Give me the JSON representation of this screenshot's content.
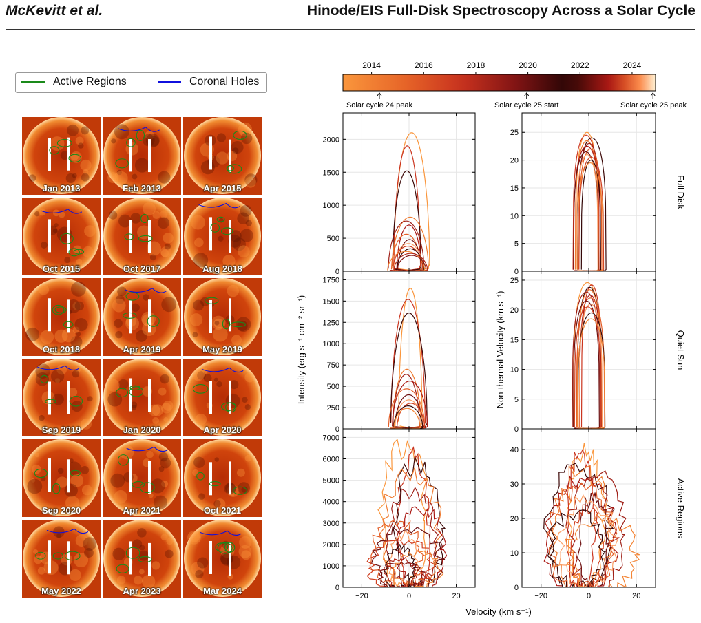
{
  "header": {
    "left": "McKevitt et al.",
    "right": "Hinode/EIS Full-Disk Spectroscopy Across a Solar Cycle"
  },
  "legend": {
    "items": [
      {
        "label": "Active Regions",
        "color": "#1a8a1a"
      },
      {
        "label": "Coronal Holes",
        "color": "#1010dd"
      }
    ]
  },
  "tiles": [
    {
      "label": "Jan 2013"
    },
    {
      "label": "Feb 2013"
    },
    {
      "label": "Apr 2015"
    },
    {
      "label": "Oct 2015"
    },
    {
      "label": "Oct 2017"
    },
    {
      "label": "Aug 2018"
    },
    {
      "label": "Oct 2018"
    },
    {
      "label": "Apr 2019"
    },
    {
      "label": "May 2019"
    },
    {
      "label": "Sep 2019"
    },
    {
      "label": "Jan 2020"
    },
    {
      "label": "Apr 2020"
    },
    {
      "label": "Sep 2020"
    },
    {
      "label": "Apr 2021"
    },
    {
      "label": "Oct 2021"
    },
    {
      "label": "May 2022"
    },
    {
      "label": "Apr 2023"
    },
    {
      "label": "Mar 2024"
    }
  ],
  "colorbar": {
    "ticks": [
      "2014",
      "2016",
      "2018",
      "2020",
      "2022",
      "2024"
    ],
    "tick_years": [
      2014,
      2016,
      2018,
      2020,
      2022,
      2024
    ],
    "range": [
      2012.9,
      2024.9
    ],
    "markers": [
      {
        "label": "Solar cycle 24 peak",
        "year": 2014.3
      },
      {
        "label": "Solar cycle 25 start",
        "year": 2019.95
      },
      {
        "label": "Solar cycle 25 peak",
        "year": 2024.8
      }
    ]
  },
  "chart_data": {
    "type": "line",
    "xlabel": "Velocity (km s⁻¹)",
    "xlim": [
      -28,
      28
    ],
    "xticks": [
      -20,
      0,
      20
    ],
    "row_labels": [
      "Full Disk",
      "Quiet Sun",
      "Active Regions"
    ],
    "ylabel_left": "Intensity (erg s⁻¹ cm⁻² sr⁻¹)",
    "ylabel_right": "Non-thermal Velocity (km s⁻¹)",
    "panels": [
      {
        "row": "Full Disk",
        "quantity": "intensity",
        "ylim": [
          0,
          2400
        ],
        "yticks": [
          0,
          500,
          1000,
          1500,
          2000
        ],
        "peaks": [
          2100,
          1900,
          1520,
          820,
          760,
          700,
          560,
          480,
          420,
          380,
          340,
          300,
          270,
          240
        ]
      },
      {
        "row": "Full Disk",
        "quantity": "nonthermal",
        "ylim": [
          0,
          28.5
        ],
        "yticks": [
          0,
          5,
          10,
          15,
          20,
          25
        ],
        "peaks": [
          25,
          24.5,
          24,
          23.5,
          23,
          22.5,
          22,
          21.5,
          21,
          20.5,
          20,
          19.5
        ]
      },
      {
        "row": "Quiet Sun",
        "quantity": "intensity",
        "ylim": [
          0,
          1850
        ],
        "yticks": [
          0,
          250,
          500,
          750,
          1000,
          1250,
          1500,
          1750
        ],
        "peaks": [
          1650,
          1520,
          1360,
          700,
          640,
          560,
          470,
          400,
          340,
          300,
          270,
          240
        ]
      },
      {
        "row": "Quiet Sun",
        "quantity": "nonthermal",
        "ylim": [
          0,
          26.5
        ],
        "yticks": [
          0,
          5,
          10,
          15,
          20,
          25
        ],
        "peaks": [
          24.6,
          24.2,
          23.8,
          23.4,
          23,
          22.5,
          22,
          21.5,
          21,
          20.5,
          19.5,
          18.5
        ]
      },
      {
        "row": "Active Regions",
        "quantity": "intensity",
        "ylim": [
          0,
          7400
        ],
        "yticks": [
          0,
          1000,
          2000,
          3000,
          4000,
          5000,
          6000,
          7000
        ],
        "peaks": [
          6900,
          6450,
          6100,
          5500,
          4700,
          3900,
          3300,
          2900,
          2600,
          2300,
          2000,
          1700,
          1400,
          1200
        ]
      },
      {
        "row": "Active Regions",
        "quantity": "nonthermal",
        "ylim": [
          0,
          46
        ],
        "yticks": [
          0,
          10,
          20,
          30,
          40
        ],
        "peaks": [
          43,
          41,
          38,
          36,
          34,
          32,
          30,
          28,
          27,
          25,
          23,
          21
        ]
      }
    ]
  }
}
